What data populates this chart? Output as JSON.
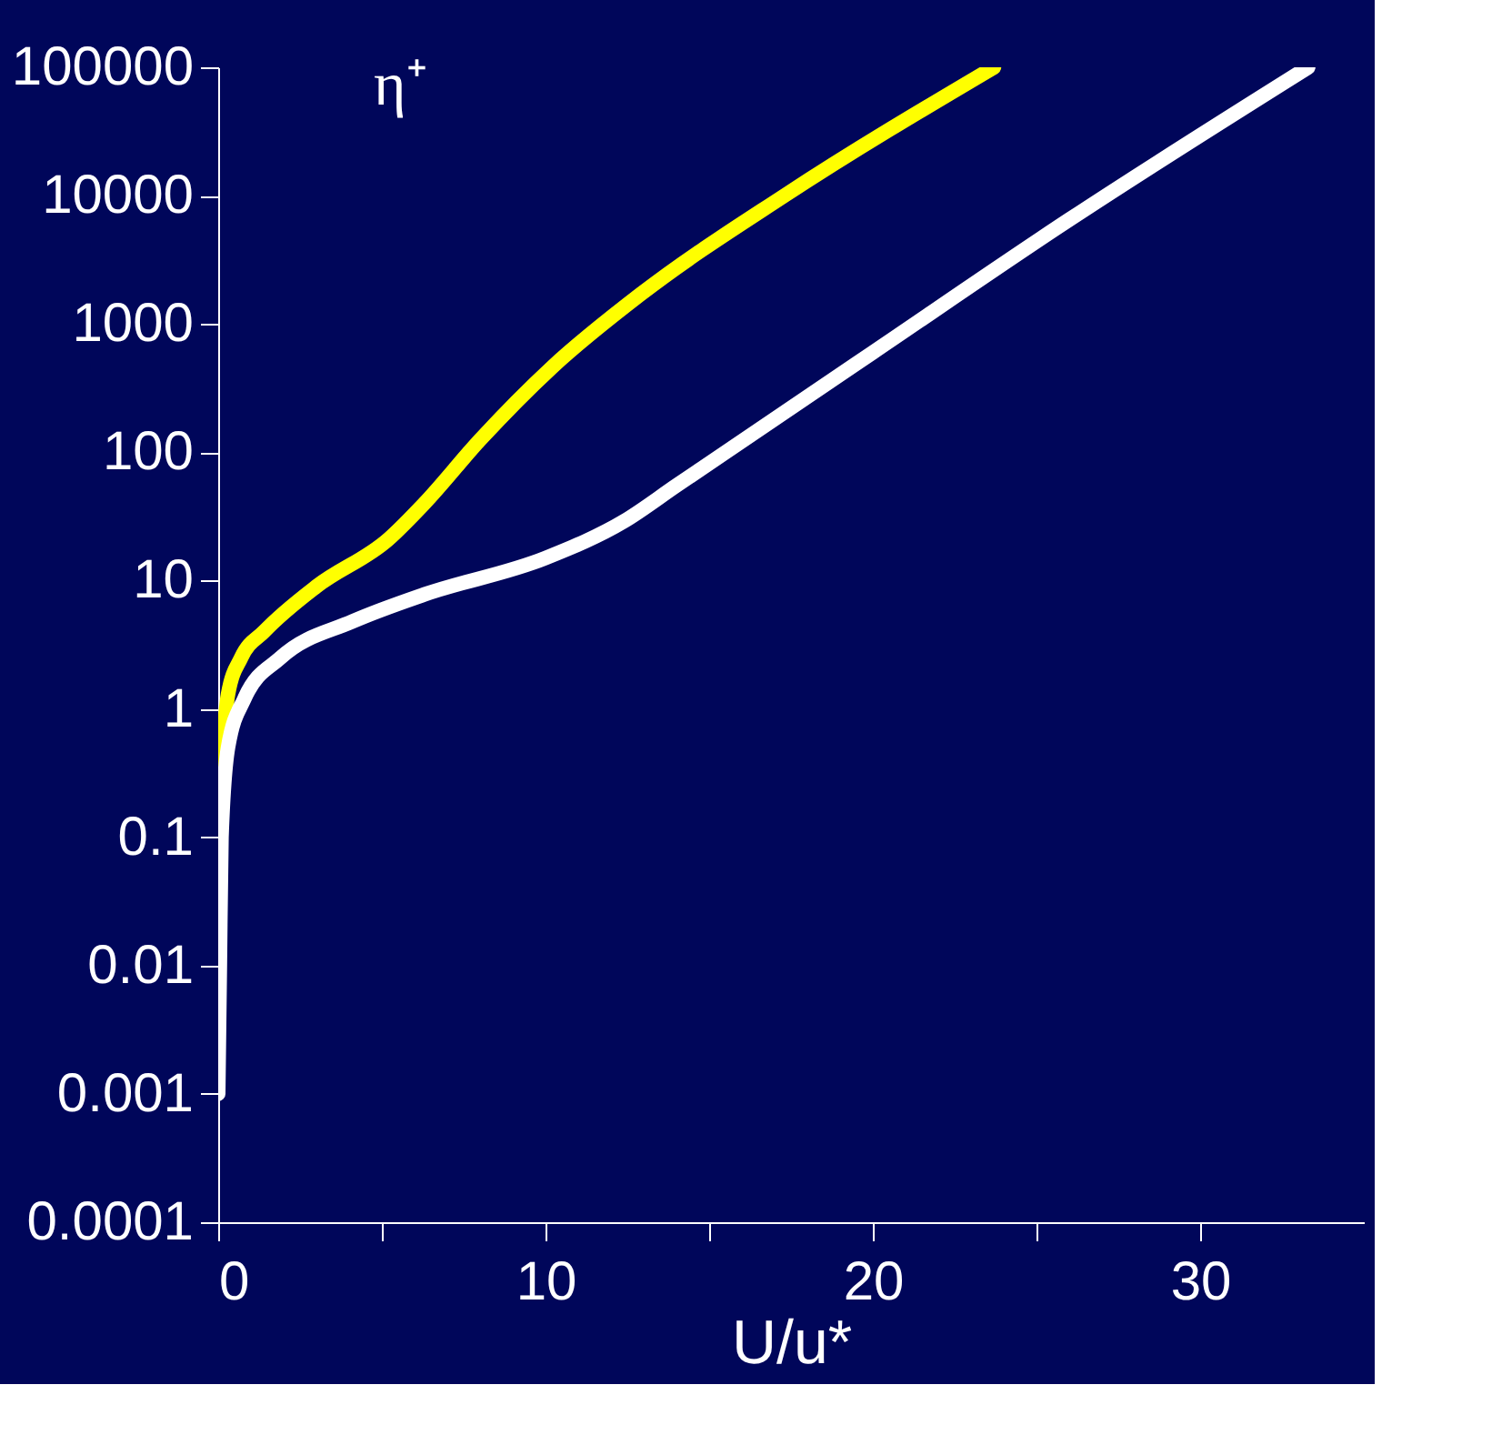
{
  "chart_data": {
    "type": "line",
    "xlabel": "U/u*",
    "ylabel": "η⁺",
    "log": "y",
    "xlim": [
      0,
      35
    ],
    "xticks": [
      0,
      {
        "value": 5,
        "label": null
      },
      10,
      {
        "value": 15,
        "label": null
      },
      20,
      {
        "value": 25,
        "label": null
      },
      30
    ],
    "ylim": [
      0.0001,
      100000
    ],
    "yticks": [
      0.0001,
      0.001,
      0.01,
      0.1,
      1,
      10,
      100,
      1000,
      10000,
      100000
    ],
    "grid": false,
    "legend": false,
    "line_style": "solid",
    "marker": "none",
    "series": [
      {
        "color": "#ffff00",
        "x": [
          0.1,
          0.3,
          0.7,
          1.4,
          3,
          5.2,
          6.3,
          8,
          10.2,
          12.9,
          17.3,
          23.7
        ],
        "values": [
          0.4,
          1.3,
          2.5,
          4,
          9,
          21,
          40,
          125,
          460,
          1700,
          10000,
          100000
        ]
      },
      {
        "color": "#ffffff",
        "x": [
          0,
          0.05,
          0.1,
          0.3,
          0.8,
          1.9,
          4.1,
          6.3,
          10,
          12.4,
          14,
          20,
          26,
          33.3
        ],
        "values": [
          0.001,
          0.01,
          0.1,
          0.5,
          1.2,
          2.5,
          4.8,
          7.8,
          15,
          29,
          55,
          600,
          6500,
          100000
        ]
      }
    ]
  }
}
